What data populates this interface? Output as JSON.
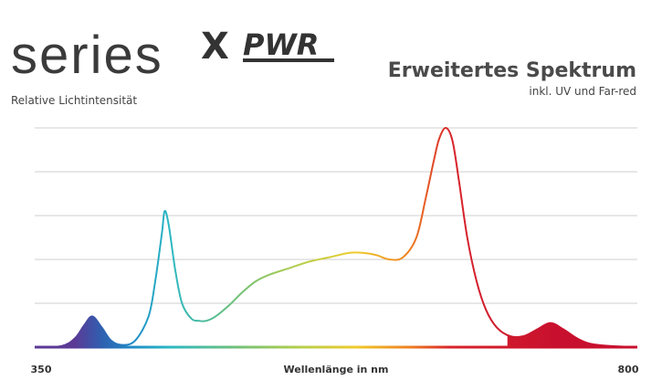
{
  "brand": {
    "name": "series",
    "mark": "X",
    "model": "PWR"
  },
  "chart_data": {
    "type": "line",
    "title": "Erweitertes Spektrum",
    "subtitle": "inkl. UV und Far-red",
    "y_label": "Relative Lichtintensität",
    "x_label": "Wellenlänge in nm",
    "x": [
      350,
      370,
      380,
      387,
      393,
      400,
      407,
      415,
      425,
      435,
      440,
      445,
      447,
      450,
      455,
      460,
      467,
      473,
      478,
      485,
      495,
      505,
      515,
      525,
      540,
      555,
      570,
      585,
      595,
      605,
      615,
      625,
      635,
      642,
      648,
      652,
      657,
      662,
      667,
      673,
      680,
      687,
      695,
      705,
      715,
      725,
      735,
      745,
      755,
      765,
      780,
      800
    ],
    "values": [
      0,
      0.5,
      4,
      10,
      14,
      9,
      3,
      1,
      3,
      14,
      30,
      52,
      62,
      56,
      35,
      20,
      13,
      12,
      12,
      14,
      19,
      25,
      30,
      33,
      36,
      39,
      41,
      43,
      43,
      42,
      40,
      41,
      50,
      68,
      85,
      95,
      100,
      94,
      75,
      50,
      30,
      17,
      9,
      5,
      5,
      8,
      11,
      8,
      4,
      1.5,
      0.5,
      0
    ],
    "xlim": [
      350,
      800
    ],
    "xticks": [
      350,
      800
    ],
    "ylim": [
      0,
      100
    ],
    "ygrid": [
      20,
      40,
      60,
      80,
      100
    ],
    "grid": true,
    "shaded_ranges": [
      [
        355,
        418
      ],
      [
        703,
        800
      ]
    ],
    "color_stops": [
      {
        "x": 380,
        "color": "#5b3a96"
      },
      {
        "x": 400,
        "color": "#2f5fb0"
      },
      {
        "x": 425,
        "color": "#1f8fc8"
      },
      {
        "x": 450,
        "color": "#2ab7c4"
      },
      {
        "x": 500,
        "color": "#6fc07a"
      },
      {
        "x": 550,
        "color": "#b8cf4a"
      },
      {
        "x": 590,
        "color": "#f0cb2a"
      },
      {
        "x": 630,
        "color": "#ee7f22"
      },
      {
        "x": 660,
        "color": "#d8242b"
      },
      {
        "x": 740,
        "color": "#c8102e"
      }
    ]
  }
}
